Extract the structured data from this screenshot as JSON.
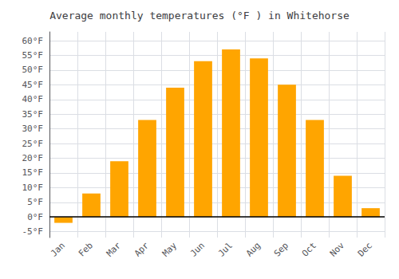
{
  "chart_data": {
    "type": "bar",
    "title": "Average monthly temperatures (°F ) in Whitehorse",
    "categories": [
      "Jan",
      "Feb",
      "Mar",
      "Apr",
      "May",
      "Jun",
      "Jul",
      "Aug",
      "Sep",
      "Oct",
      "Nov",
      "Dec"
    ],
    "values": [
      -2,
      8,
      19,
      33,
      44,
      53,
      57,
      54,
      45,
      33,
      14,
      3
    ],
    "color": "#FFA500",
    "ylim": [
      -7,
      63
    ],
    "yticks": [
      {
        "value": -5,
        "label": "-5°F"
      },
      {
        "value": 0,
        "label": "0°F"
      },
      {
        "value": 5,
        "label": "5°F"
      },
      {
        "value": 10,
        "label": "10°F"
      },
      {
        "value": 15,
        "label": "15°F"
      },
      {
        "value": 20,
        "label": "20°F"
      },
      {
        "value": 25,
        "label": "25°F"
      },
      {
        "value": 30,
        "label": "30°F"
      },
      {
        "value": 35,
        "label": "35°F"
      },
      {
        "value": 40,
        "label": "40°F"
      },
      {
        "value": 45,
        "label": "45°F"
      },
      {
        "value": 50,
        "label": "50°F"
      },
      {
        "value": 55,
        "label": "55°F"
      },
      {
        "value": 60,
        "label": "60°F"
      }
    ],
    "grid": true
  }
}
